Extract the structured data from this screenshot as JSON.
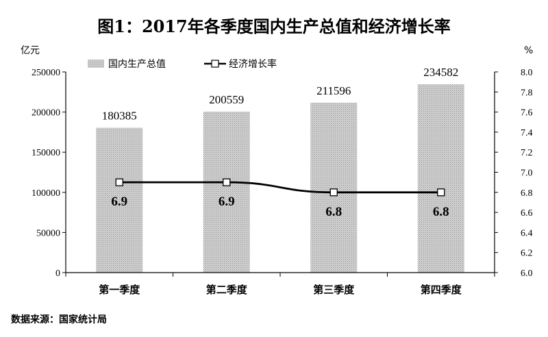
{
  "chart_data": {
    "type": "bar",
    "title": "图1：2017年各季度国内生产总值和经济增长率",
    "categories": [
      "第一季度",
      "第二季度",
      "第三季度",
      "第四季度"
    ],
    "series": [
      {
        "name": "国内生产总值",
        "type": "bar",
        "axis": "left",
        "values": [
          180385,
          200559,
          211596,
          234582
        ]
      },
      {
        "name": "经济增长率",
        "type": "line",
        "axis": "right",
        "values": [
          6.9,
          6.9,
          6.8,
          6.8
        ]
      }
    ],
    "ylabel": "亿元",
    "y2label": "%",
    "ylim": [
      0,
      250000
    ],
    "y2lim": [
      6.0,
      8.0
    ],
    "yticks": [
      "0",
      "50000",
      "100000",
      "150000",
      "200000",
      "250000"
    ],
    "y2ticks": [
      "6.0",
      "6.2",
      "6.4",
      "6.6",
      "6.8",
      "7.0",
      "7.2",
      "7.4",
      "7.6",
      "7.8",
      "8.0"
    ],
    "legend_position": "top",
    "grid": false
  },
  "source_note": "数据来源：国家统计局"
}
